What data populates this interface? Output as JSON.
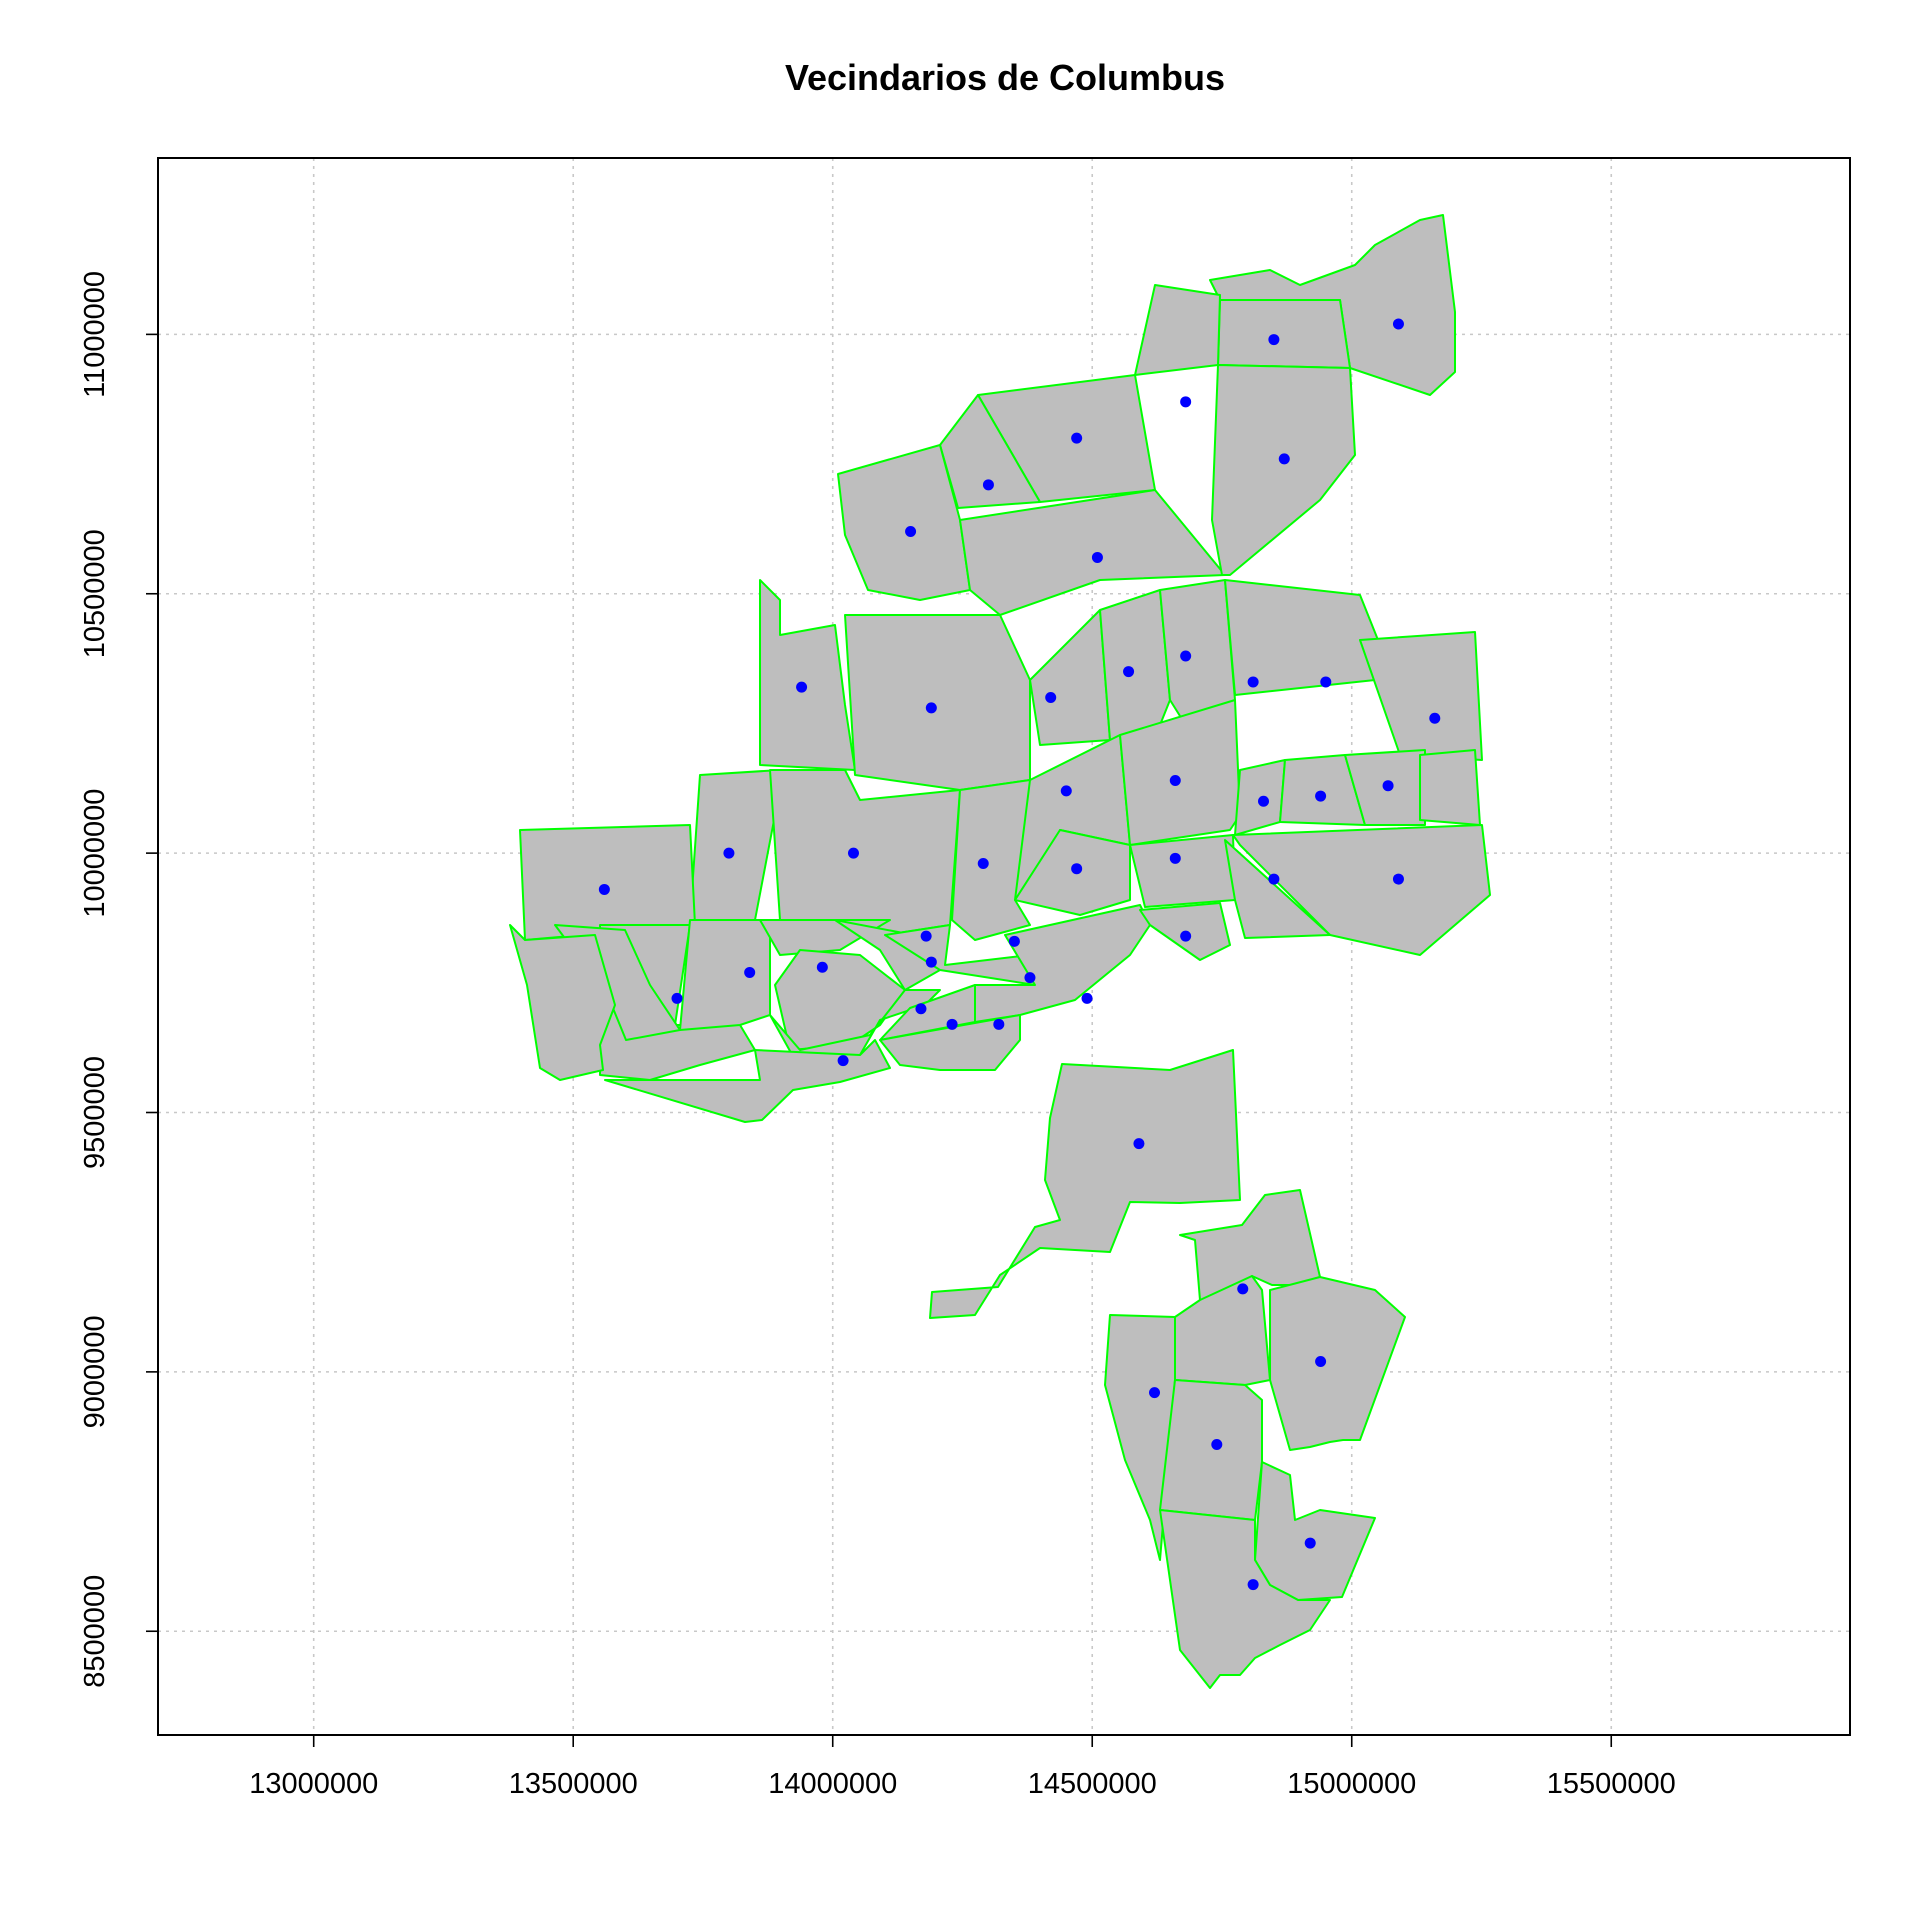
{
  "title": "Vecindarios de Columbus",
  "map": {
    "type": "choropleth-outline",
    "region_fill": "#bebebe",
    "region_border": "#00ff00",
    "centroid_color": "#0000ff",
    "grid": true,
    "x_ticks": [
      "13000000",
      "13500000",
      "14000000",
      "14500000",
      "15000000",
      "15500000"
    ],
    "y_ticks": [
      "8500000",
      "9000000",
      "9500000",
      "10000000",
      "10500000",
      "11000000"
    ],
    "xlim": [
      12700000,
      15960000
    ],
    "ylim": [
      8300000,
      11340000
    ],
    "centroids": [
      [
        15090000,
        11020000
      ],
      [
        14850000,
        10990000
      ],
      [
        14680000,
        10870000
      ],
      [
        14870000,
        10760000
      ],
      [
        14470000,
        10800000
      ],
      [
        14300000,
        10710000
      ],
      [
        14150000,
        10620000
      ],
      [
        14510000,
        10570000
      ],
      [
        13940000,
        10320000
      ],
      [
        14190000,
        10280000
      ],
      [
        14420000,
        10300000
      ],
      [
        14570000,
        10350000
      ],
      [
        14680000,
        10380000
      ],
      [
        14810000,
        10330000
      ],
      [
        14950000,
        10330000
      ],
      [
        15160000,
        10260000
      ],
      [
        14450000,
        10120000
      ],
      [
        14660000,
        10140000
      ],
      [
        14830000,
        10100000
      ],
      [
        14940000,
        10110000
      ],
      [
        15070000,
        10130000
      ],
      [
        13800000,
        10000000
      ],
      [
        14040000,
        10000000
      ],
      [
        14290000,
        9980000
      ],
      [
        14470000,
        9970000
      ],
      [
        14660000,
        9990000
      ],
      [
        14850000,
        9950000
      ],
      [
        15090000,
        9950000
      ],
      [
        13560000,
        9930000
      ],
      [
        14180000,
        9840000
      ],
      [
        14350000,
        9830000
      ],
      [
        14680000,
        9840000
      ],
      [
        13840000,
        9770000
      ],
      [
        13980000,
        9780000
      ],
      [
        14190000,
        9790000
      ],
      [
        14380000,
        9760000
      ],
      [
        14490000,
        9720000
      ],
      [
        13700000,
        9720000
      ],
      [
        14170000,
        9700000
      ],
      [
        14230000,
        9670000
      ],
      [
        14320000,
        9670000
      ],
      [
        14020000,
        9600000
      ],
      [
        14590000,
        9440000
      ],
      [
        14790000,
        9160000
      ],
      [
        14940000,
        9020000
      ],
      [
        14620000,
        8960000
      ],
      [
        14740000,
        8860000
      ],
      [
        14920000,
        8670000
      ],
      [
        14810000,
        8590000
      ]
    ]
  }
}
